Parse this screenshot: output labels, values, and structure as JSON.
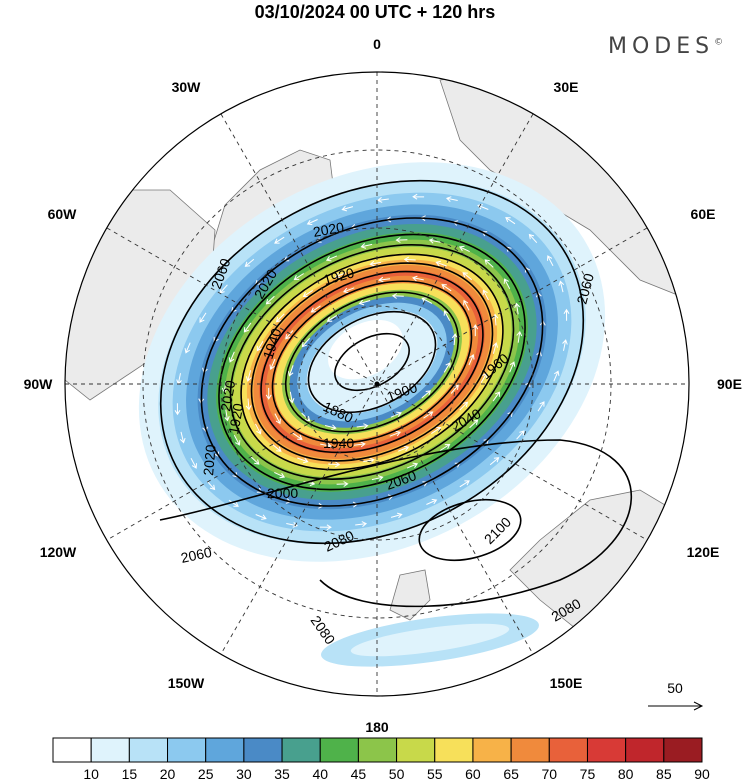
{
  "header": {
    "title": "03/10/2024  00 UTC  + 120 hrs",
    "logo": "MODES",
    "logo_mark": "©"
  },
  "map": {
    "projection": "polar stereographic (north pole)",
    "longitude_labels": [
      "0",
      "30E",
      "60E",
      "90E",
      "120E",
      "150E",
      "180",
      "150W",
      "120W",
      "90W",
      "60W",
      "30W"
    ],
    "contour_labels": [
      "1880",
      "1900",
      "1920",
      "1920",
      "1940",
      "1940",
      "1960",
      "2000",
      "2020",
      "2020",
      "2020",
      "2020",
      "2040",
      "2060",
      "2060",
      "2060",
      "2060",
      "2080",
      "2080",
      "2080",
      "2100"
    ],
    "reference_vector": "50"
  },
  "colorbar": {
    "labels": [
      "10",
      "15",
      "20",
      "25",
      "30",
      "35",
      "40",
      "45",
      "50",
      "55",
      "60",
      "65",
      "70",
      "75",
      "80",
      "85",
      "90"
    ],
    "colors": [
      "#ffffff",
      "#dff3fc",
      "#b8e2f7",
      "#8cc9ef",
      "#5fa6dc",
      "#4a8ac6",
      "#48a08e",
      "#4fb24a",
      "#8cc54a",
      "#c8d94a",
      "#f7e05a",
      "#f7b248",
      "#f08a3c",
      "#e8613a",
      "#d83a36",
      "#c0262c",
      "#9a1c22"
    ]
  }
}
